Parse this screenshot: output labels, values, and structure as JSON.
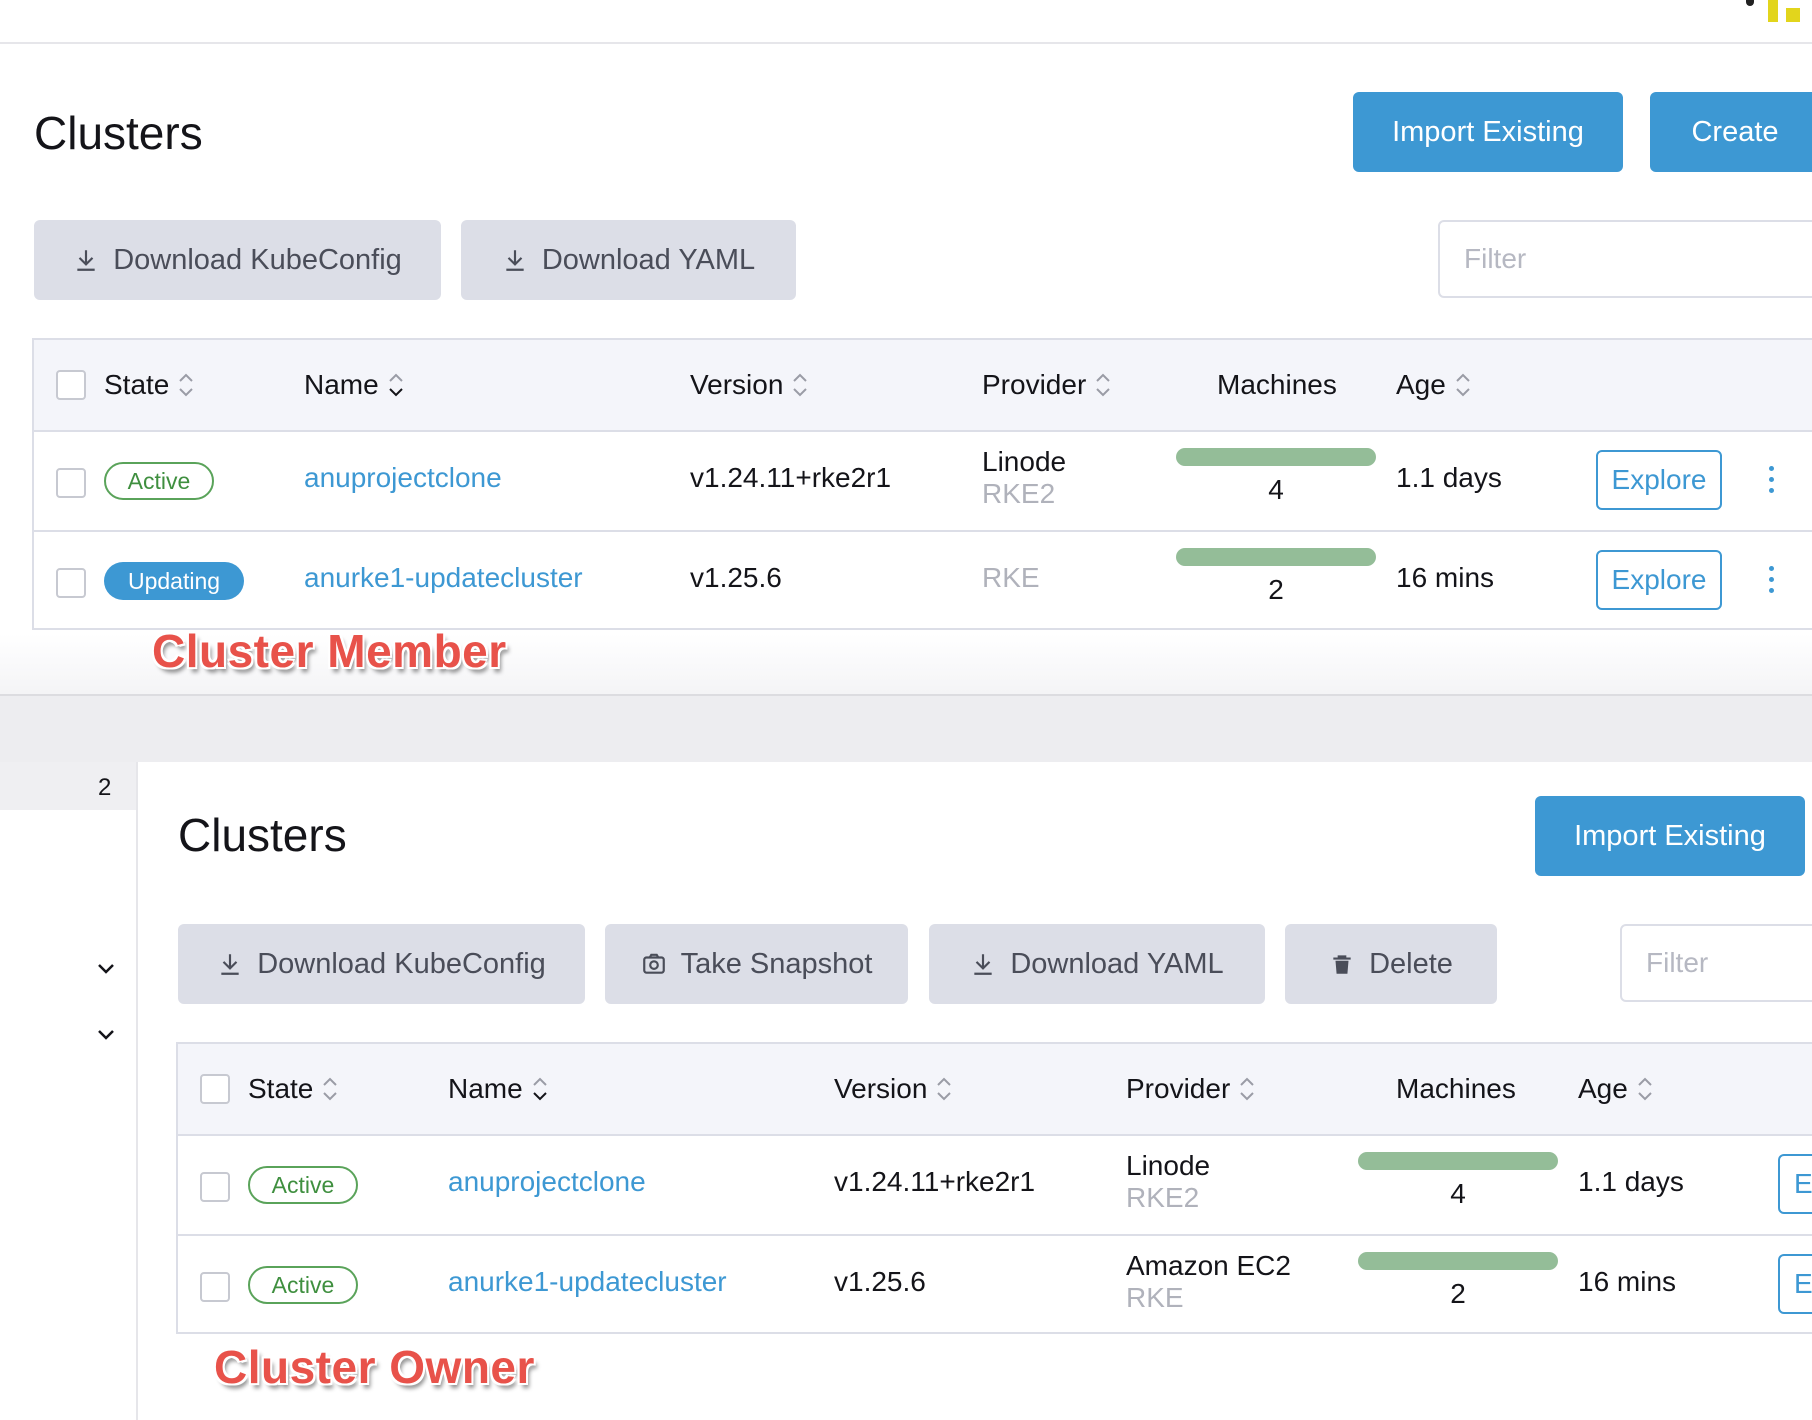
{
  "colors": {
    "accent": "#3d98d3",
    "active_green": "#3f8f3f",
    "machines_bar": "#94bd98",
    "annotation": "#e8524a",
    "logo": "#e2d51c"
  },
  "member": {
    "title": "Clusters",
    "import_label": "Import Existing",
    "create_label": "Create",
    "download_kubeconfig_label": "Download KubeConfig",
    "download_yaml_label": "Download YAML",
    "filter_placeholder": "Filter",
    "headers": {
      "state": "State",
      "name": "Name",
      "version": "Version",
      "provider": "Provider",
      "machines": "Machines",
      "age": "Age"
    },
    "rows": [
      {
        "state": "Active",
        "name": "anuprojectclone",
        "version": "v1.24.11+rke2r1",
        "provider": "Linode",
        "provider_sub": "RKE2",
        "machines": "4",
        "age": "1.1 days",
        "action": "Explore"
      },
      {
        "state": "Updating",
        "name": "anurke1-updatecluster",
        "version": "v1.25.6",
        "provider": "",
        "provider_sub": "RKE",
        "machines": "2",
        "age": "16 mins",
        "action": "Explore"
      }
    ],
    "annotation": "Cluster Member"
  },
  "owner": {
    "sidebar_number": "2",
    "title": "Clusters",
    "import_label": "Import Existing",
    "download_kubeconfig_label": "Download KubeConfig",
    "take_snapshot_label": "Take Snapshot",
    "download_yaml_label": "Download YAML",
    "delete_label": "Delete",
    "filter_placeholder": "Filter",
    "headers": {
      "state": "State",
      "name": "Name",
      "version": "Version",
      "provider": "Provider",
      "machines": "Machines",
      "age": "Age"
    },
    "rows": [
      {
        "state": "Active",
        "name": "anuprojectclone",
        "version": "v1.24.11+rke2r1",
        "provider": "Linode",
        "provider_sub": "RKE2",
        "machines": "4",
        "age": "1.1 days",
        "action": "E"
      },
      {
        "state": "Active",
        "name": "anurke1-updatecluster",
        "version": "v1.25.6",
        "provider": "Amazon EC2",
        "provider_sub": "RKE",
        "machines": "2",
        "age": "16 mins",
        "action": "E"
      }
    ],
    "annotation": "Cluster Owner"
  }
}
